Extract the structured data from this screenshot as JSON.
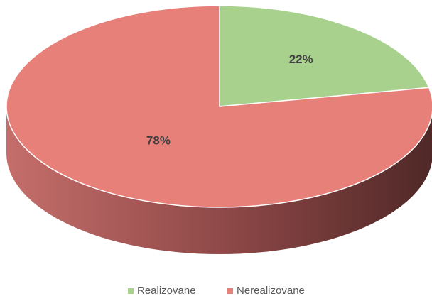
{
  "chart_data": {
    "type": "pie",
    "categories": [
      "Realizovane",
      "Nerealizovane"
    ],
    "values": [
      22,
      78
    ],
    "value_labels": [
      "22%",
      "78%"
    ],
    "colors": [
      "#a9d18e",
      "#e8807a"
    ],
    "legend": "bottom"
  }
}
